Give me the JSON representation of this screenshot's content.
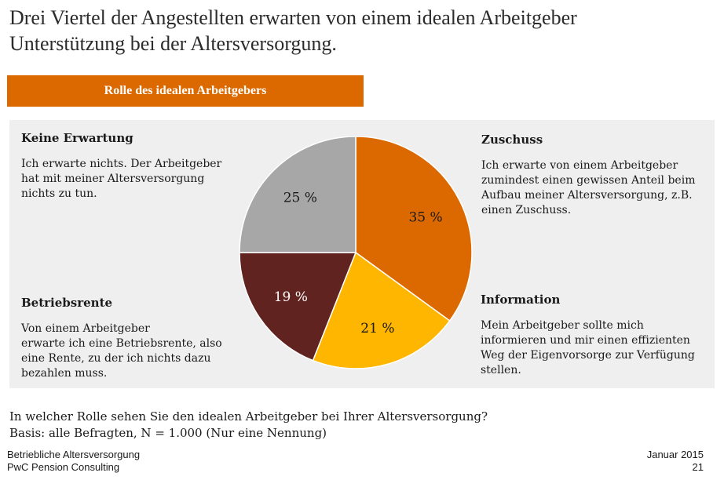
{
  "title": {
    "line1": "Drei Viertel der Angestellten erwarten von einem idealen Arbeitgeber",
    "line2": "Unterstützung bei der Altersversorgung."
  },
  "section_label": "Rolle des idealen Arbeitgebers",
  "categories": {
    "keine": {
      "heading": "Keine Erwartung",
      "lines": [
        "Ich erwarte nichts. Der Arbeitgeber",
        "hat mit meiner Altersversorgung",
        "nichts zu tun."
      ]
    },
    "zuschuss": {
      "heading": "Zuschuss",
      "lines": [
        "Ich erwarte von einem Arbeitgeber",
        "zumindest einen gewissen Anteil beim",
        "Aufbau meiner Altersversorgung, z.B.",
        "einen Zuschuss."
      ]
    },
    "betriebsrente": {
      "heading": "Betriebsrente",
      "lines": [
        "Von einem Arbeitgeber",
        "erwarte ich eine Betriebsrente, also",
        "eine Rente, zu der ich nichts dazu",
        "bezahlen muss."
      ]
    },
    "information": {
      "heading": "Information",
      "lines": [
        "Mein Arbeitgeber sollte mich",
        "informieren und mir einen effizienten",
        "Weg der Eigenvorsorge zur Verfügung",
        "stellen."
      ]
    }
  },
  "chart_data": {
    "type": "pie",
    "title": "",
    "slices": [
      {
        "name": "Zuschuss",
        "value": 35,
        "label": "35 %",
        "color": "#dc6900",
        "label_color": "#1a1a1a"
      },
      {
        "name": "Information",
        "value": 21,
        "label": "21 %",
        "color": "#ffb600",
        "label_color": "#1a1a1a"
      },
      {
        "name": "Betriebsrente",
        "value": 19,
        "label": "19 %",
        "color": "#602320",
        "label_color": "#ffffff"
      },
      {
        "name": "Keine Erwartung",
        "value": 25,
        "label": "25 %",
        "color": "#a7a7a7",
        "label_color": "#1a1a1a"
      }
    ],
    "start": "12 o'clock",
    "direction": "clockwise"
  },
  "footer": {
    "question": "In welcher Rolle sehen Sie den idealen Arbeitgeber bei Ihrer Altersversorgung?",
    "basis": "Basis: alle Befragten, N = 1.000 (Nur eine Nennung)",
    "left_line1": "Betriebliche Altersversorgung",
    "left_line2": "PwC Pension Consulting",
    "date": "Januar 2015",
    "page": "21"
  }
}
